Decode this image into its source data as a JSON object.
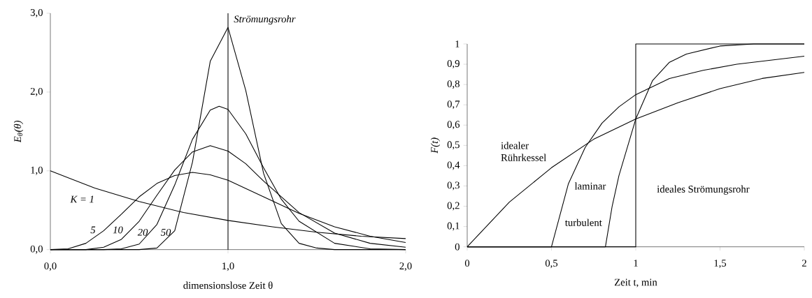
{
  "chart_data": [
    {
      "type": "line",
      "xlabel": "dimensionslose Zeit θ",
      "ylabel": "E$_{θ}$(θ)",
      "xlim": [
        0,
        2
      ],
      "ylim": [
        0,
        3
      ],
      "xticks": [
        {
          "value": 0,
          "label": "0,0"
        },
        {
          "value": 1,
          "label": "1,0"
        },
        {
          "value": 2,
          "label": "2,0"
        }
      ],
      "yticks": [
        {
          "value": 0,
          "label": "0,0"
        },
        {
          "value": 1,
          "label": "1,0"
        },
        {
          "value": 2,
          "label": "2,0"
        },
        {
          "value": 3,
          "label": "3,0"
        }
      ],
      "series": [
        {
          "name": "K = 1",
          "color": "#000000",
          "x": [
            0,
            0.25,
            0.5,
            0.75,
            1,
            1.25,
            1.5,
            1.75,
            2
          ],
          "values": [
            1.0,
            0.78,
            0.61,
            0.47,
            0.37,
            0.29,
            0.22,
            0.17,
            0.14
          ]
        },
        {
          "name": "5",
          "color": "#000000",
          "x": [
            0,
            0.1,
            0.2,
            0.3,
            0.4,
            0.5,
            0.6,
            0.7,
            0.8,
            0.9,
            1.0,
            1.2,
            1.4,
            1.6,
            1.8,
            2.0
          ],
          "values": [
            0,
            0.01,
            0.08,
            0.24,
            0.45,
            0.67,
            0.84,
            0.94,
            0.98,
            0.95,
            0.88,
            0.67,
            0.46,
            0.29,
            0.17,
            0.09
          ]
        },
        {
          "name": "10",
          "color": "#000000",
          "x": [
            0,
            0.2,
            0.3,
            0.4,
            0.5,
            0.6,
            0.7,
            0.8,
            0.9,
            1.0,
            1.1,
            1.2,
            1.4,
            1.6,
            1.8,
            2.0
          ],
          "values": [
            0,
            0,
            0.03,
            0.13,
            0.36,
            0.69,
            1.01,
            1.24,
            1.32,
            1.25,
            1.09,
            0.87,
            0.47,
            0.21,
            0.08,
            0.03
          ]
        },
        {
          "name": "20",
          "color": "#000000",
          "x": [
            0,
            0.3,
            0.4,
            0.5,
            0.6,
            0.7,
            0.8,
            0.9,
            0.95,
            1.0,
            1.1,
            1.2,
            1.3,
            1.4,
            1.6,
            1.8,
            2.0
          ],
          "values": [
            0,
            0,
            0.01,
            0.07,
            0.32,
            0.82,
            1.4,
            1.77,
            1.82,
            1.78,
            1.47,
            1.04,
            0.64,
            0.36,
            0.08,
            0.01,
            0
          ]
        },
        {
          "name": "50",
          "color": "#000000",
          "x": [
            0,
            0.5,
            0.6,
            0.7,
            0.8,
            0.9,
            1.0,
            1.1,
            1.2,
            1.3,
            1.4,
            1.5,
            1.6,
            2.0
          ],
          "values": [
            0,
            0,
            0.02,
            0.24,
            1.11,
            2.39,
            2.82,
            2.02,
            0.97,
            0.33,
            0.08,
            0.02,
            0,
            0
          ]
        }
      ],
      "ref_lines": [
        {
          "axis": "x",
          "value": 1,
          "label": "Strömungsrohr"
        }
      ]
    },
    {
      "type": "line",
      "xlabel": "Zeit t, min",
      "ylabel": "F(t)",
      "xlim": [
        0,
        2
      ],
      "ylim": [
        0,
        1
      ],
      "xticks": [
        0,
        {
          "value": 0.5,
          "label": "0,5"
        },
        1,
        {
          "value": 1.5,
          "label": "1,5"
        },
        2
      ],
      "yticks": [
        0,
        {
          "value": 0.1,
          "label": "0,1"
        },
        {
          "value": 0.2,
          "label": "0,2"
        },
        {
          "value": 0.3,
          "label": "0,3"
        },
        {
          "value": 0.4,
          "label": "0,4"
        },
        {
          "value": 0.5,
          "label": "0,5"
        },
        {
          "value": 0.6,
          "label": "0,6"
        },
        {
          "value": 0.7,
          "label": "0,7"
        },
        {
          "value": 0.8,
          "label": "0,8"
        },
        {
          "value": 0.9,
          "label": "0,9"
        },
        1
      ],
      "series": [
        {
          "name": "idealer Rührkessel",
          "color": "#000000",
          "x": [
            0,
            0.25,
            0.5,
            0.75,
            1,
            1.25,
            1.5,
            1.75,
            2
          ],
          "values": [
            0,
            0.22,
            0.39,
            0.53,
            0.63,
            0.71,
            0.78,
            0.83,
            0.86
          ]
        },
        {
          "name": "laminar",
          "color": "#000000",
          "x": [
            0,
            0.5,
            0.6,
            0.7,
            0.8,
            0.9,
            1.0,
            1.2,
            1.4,
            1.6,
            1.8,
            2.0
          ],
          "values": [
            0,
            0,
            0.31,
            0.49,
            0.61,
            0.69,
            0.75,
            0.83,
            0.87,
            0.9,
            0.92,
            0.94
          ]
        },
        {
          "name": "turbulent",
          "color": "#000000",
          "x": [
            0,
            0.82,
            0.86,
            0.9,
            1.0,
            1.1,
            1.2,
            1.3,
            1.5,
            1.7,
            2.0
          ],
          "values": [
            0,
            0,
            0.2,
            0.35,
            0.63,
            0.82,
            0.91,
            0.95,
            0.99,
            1.0,
            1.0
          ]
        },
        {
          "name": "ideales Strömungsrohr",
          "color": "#000000",
          "x": [
            0,
            1,
            1,
            2
          ],
          "values": [
            0,
            0,
            1,
            1
          ]
        }
      ]
    }
  ]
}
